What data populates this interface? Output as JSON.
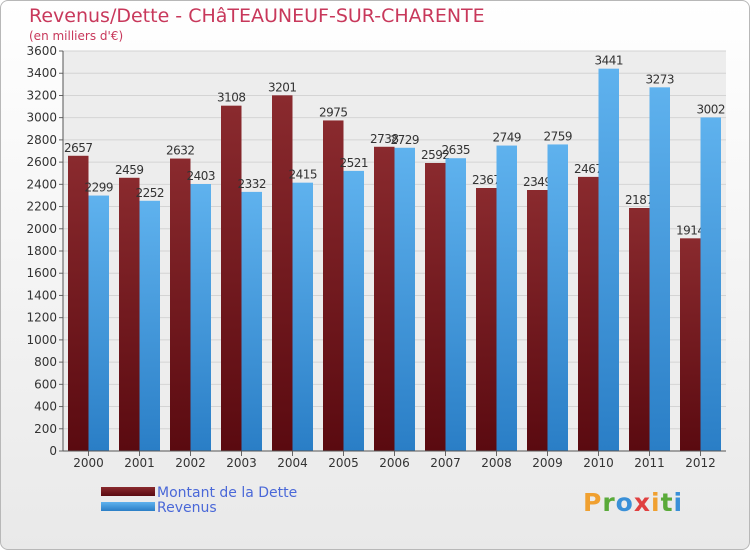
{
  "title": "Revenus/Dette - CHâTEAUNEUF-SUR-CHARENTE",
  "subtitle": "(en milliers d'€)",
  "chart_data": {
    "type": "bar",
    "categories": [
      "2000",
      "2001",
      "2002",
      "2003",
      "2004",
      "2005",
      "2006",
      "2007",
      "2008",
      "2009",
      "2010",
      "2011",
      "2012"
    ],
    "series": [
      {
        "name": "Montant de la Dette",
        "color": "#7a2226",
        "values": [
          2657,
          2459,
          2632,
          3108,
          3201,
          2975,
          2738,
          2592,
          2367,
          2349,
          2467,
          2187,
          1914
        ],
        "labels": [
          "2657",
          "2459",
          "2632",
          "3108",
          "3201",
          "2975",
          "2738",
          "2592",
          "2367",
          "2349",
          "2467",
          "2187",
          "1914"
        ]
      },
      {
        "name": "Revenus",
        "color": "#4ea6e6",
        "values": [
          2299,
          2252,
          2403,
          2332,
          2415,
          2521,
          2729,
          2635,
          2749,
          2759,
          3441,
          3273,
          3002
        ],
        "labels": [
          "2299",
          "2252",
          "2403",
          "2332",
          "2415",
          "2521",
          "2729",
          "2635",
          "2749",
          "2759",
          "3441",
          "3273",
          "3002"
        ]
      }
    ],
    "y_ticks": [
      "0",
      "200",
      "400",
      "600",
      "800",
      "1000",
      "1200",
      "1400",
      "1600",
      "1800",
      "2000",
      "2200",
      "2400",
      "2600",
      "2800",
      "3000",
      "3200",
      "3400",
      "3600"
    ],
    "ylim": [
      0,
      3600
    ],
    "grid": true,
    "legend_position": "bottom-left"
  },
  "logo": {
    "letters": [
      "P",
      "r",
      "o",
      "x",
      "i",
      "t",
      "i"
    ],
    "colors": [
      "#f0a030",
      "#5aaa3a",
      "#3a90d8",
      "#e04040",
      "#f0a030",
      "#5aaa3a",
      "#3a90d8"
    ]
  }
}
